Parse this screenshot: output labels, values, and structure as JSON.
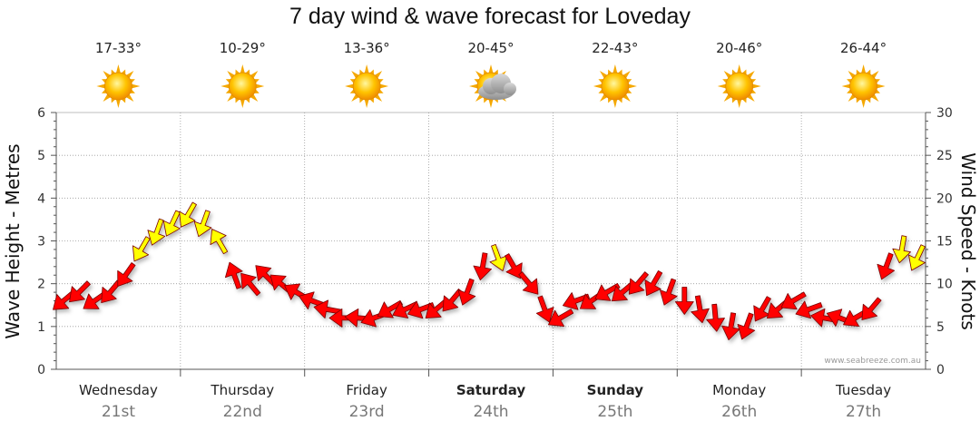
{
  "chart_data": {
    "type": "line",
    "title": "7 day wind & wave forecast for Loveday",
    "ylabel_left": "Wave Height - Metres",
    "ylabel_right": "Wind Speed - Knots",
    "ylim_left": [
      0,
      6
    ],
    "ylim_right": [
      0,
      30
    ],
    "yticks_left": [
      "0",
      "1",
      "2",
      "3",
      "4",
      "5",
      "6"
    ],
    "yticks_right": [
      "0",
      "5",
      "10",
      "15",
      "20",
      "25",
      "30"
    ],
    "grid": "dotted",
    "days": [
      {
        "name": "Wednesday",
        "date": "21st",
        "temp": "17-33°",
        "weather": "sunny",
        "bold": false
      },
      {
        "name": "Thursday",
        "date": "22nd",
        "temp": "10-29°",
        "weather": "sunny",
        "bold": false
      },
      {
        "name": "Friday",
        "date": "23rd",
        "temp": "13-36°",
        "weather": "sunny",
        "bold": false
      },
      {
        "name": "Saturday",
        "date": "24th",
        "temp": "20-45°",
        "weather": "partly-cloudy",
        "bold": true
      },
      {
        "name": "Sunday",
        "date": "25th",
        "temp": "22-43°",
        "weather": "sunny",
        "bold": true
      },
      {
        "name": "Monday",
        "date": "26th",
        "temp": "20-46°",
        "weather": "sunny",
        "bold": false
      },
      {
        "name": "Tuesday",
        "date": "27th",
        "temp": "26-44°",
        "weather": "sunny",
        "bold": false
      }
    ],
    "series": [
      {
        "name": "Wind Speed - Knots",
        "color_low": "#ff0000",
        "color_high": "#ffff00",
        "threshold_knots": 13,
        "x_hours": [
          0,
          3,
          6,
          9,
          12,
          15,
          18,
          21,
          24,
          27,
          30,
          33,
          36,
          39,
          42,
          45,
          48,
          51,
          54,
          57,
          60,
          63,
          66,
          69,
          72,
          75,
          78,
          81,
          84,
          87,
          90,
          93,
          96,
          99,
          102,
          105,
          108,
          111,
          114,
          117,
          120,
          123,
          126,
          129,
          132,
          135,
          138,
          141,
          144,
          147,
          150,
          153,
          156,
          159,
          162,
          165
        ],
        "knots": [
          8,
          9,
          8,
          9,
          11,
          14,
          16,
          17,
          18,
          17,
          15,
          11,
          10,
          11,
          10,
          9,
          8,
          7,
          6,
          6,
          6,
          7,
          7,
          7,
          7,
          8,
          9,
          12,
          13,
          12,
          10,
          7,
          6,
          8,
          8,
          9,
          9,
          10,
          10,
          9,
          8,
          7,
          6,
          5,
          5,
          7,
          7,
          8,
          7,
          6,
          6,
          6,
          7,
          12,
          14,
          13
        ],
        "direction_deg": [
          230,
          225,
          235,
          220,
          215,
          210,
          200,
          205,
          210,
          200,
          330,
          340,
          320,
          315,
          310,
          300,
          290,
          280,
          270,
          275,
          250,
          240,
          245,
          250,
          230,
          220,
          200,
          190,
          160,
          150,
          140,
          160,
          240,
          250,
          235,
          240,
          230,
          220,
          210,
          200,
          180,
          170,
          175,
          190,
          200,
          210,
          230,
          240,
          250,
          280,
          290,
          240,
          220,
          200,
          190,
          205
        ]
      }
    ],
    "watermark": "www.seabreeze.com.au"
  }
}
